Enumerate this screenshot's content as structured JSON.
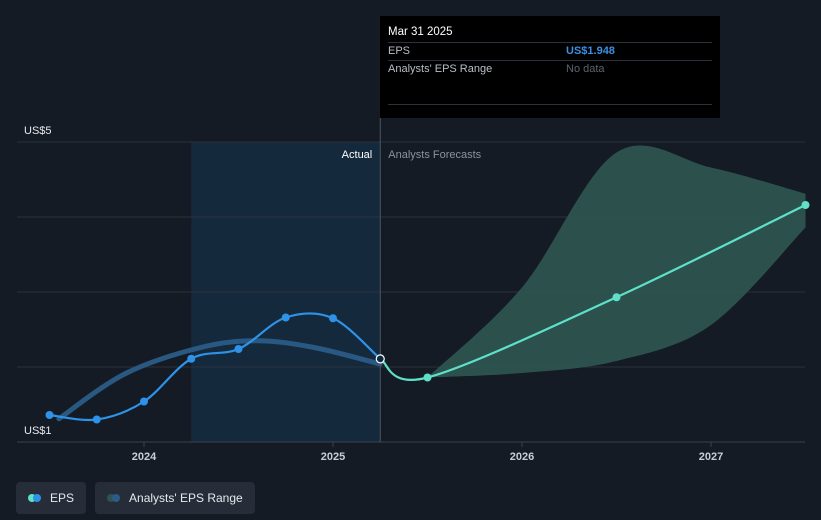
{
  "tooltip": {
    "date": "Mar 31 2025",
    "eps_label": "EPS",
    "eps_value": "US$1.948",
    "range_label": "Analysts' EPS Range",
    "range_value": "No data"
  },
  "labels": {
    "actual": "Actual",
    "forecast": "Analysts Forecasts"
  },
  "legend": {
    "eps": "EPS",
    "range": "Analysts' EPS Range"
  },
  "colors": {
    "background": "#151b24",
    "eps_actual": "#2e93e8",
    "eps_forecast": "#5ee0c9",
    "analyst_trend": "#2a5c86",
    "range_fill": "#2d5450",
    "highlight": "#152c42"
  },
  "chart_data": {
    "type": "line",
    "y_tick_labels": [
      "US$1",
      "US$5"
    ],
    "ylim": [
      1,
      5
    ],
    "grid": true,
    "x_ticks": [
      2024,
      2025,
      2026,
      2027
    ],
    "xlim": [
      2023.35,
      2027.5
    ],
    "actual_cutoff": 2025.25,
    "highlight_start": 2024.25,
    "series": [
      {
        "name": "EPS",
        "points": [
          [
            2023.5,
            1.2
          ],
          [
            2023.75,
            1.14
          ],
          [
            2024.0,
            1.38
          ],
          [
            2024.25,
            1.95
          ],
          [
            2024.5,
            2.08
          ],
          [
            2024.75,
            2.5
          ],
          [
            2025.0,
            2.49
          ],
          [
            2025.25,
            1.948
          ]
        ]
      },
      {
        "name": "EPS",
        "points": [
          [
            2025.25,
            1.948
          ],
          [
            2025.5,
            1.7
          ],
          [
            2026.5,
            2.77
          ],
          [
            2027.5,
            4.0
          ]
        ]
      },
      {
        "points": [
          [
            2023.55,
            1.15
          ],
          [
            2023.9,
            1.75
          ],
          [
            2024.3,
            2.1
          ],
          [
            2024.6,
            2.19
          ],
          [
            2024.9,
            2.1
          ],
          [
            2025.25,
            1.88
          ]
        ]
      }
    ],
    "range": {
      "upper": [
        [
          2025.5,
          1.7
        ],
        [
          2026.0,
          2.9
        ],
        [
          2026.5,
          4.7
        ],
        [
          2027.0,
          4.5
        ],
        [
          2027.5,
          4.15
        ]
      ],
      "lower": [
        [
          2025.5,
          1.7
        ],
        [
          2026.0,
          1.76
        ],
        [
          2026.5,
          1.92
        ],
        [
          2027.0,
          2.4
        ],
        [
          2027.5,
          3.7
        ]
      ]
    }
  }
}
